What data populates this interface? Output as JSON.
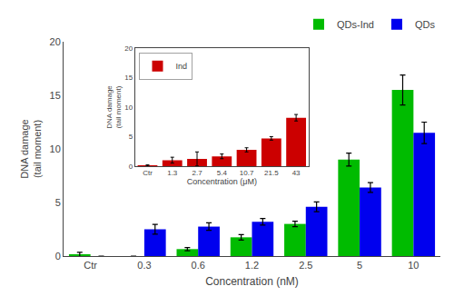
{
  "chart_data": [
    {
      "type": "bar",
      "categories": [
        "Ctr",
        "0.3",
        "0.6",
        "1.2",
        "2.5",
        "5",
        "10"
      ],
      "series": [
        {
          "name": "QDs-Ind",
          "color": "#00BB00",
          "values": [
            0.15,
            0.0,
            0.65,
            1.75,
            3.0,
            9.0,
            15.5
          ],
          "errors": [
            0.2,
            0.0,
            0.15,
            0.25,
            0.25,
            0.6,
            1.4
          ]
        },
        {
          "name": "QDs",
          "color": "#0000EE",
          "values": [
            0.0,
            2.5,
            2.75,
            3.2,
            4.6,
            6.4,
            11.5
          ],
          "errors": [
            0.0,
            0.45,
            0.35,
            0.3,
            0.45,
            0.45,
            1.0
          ]
        }
      ],
      "xlabel": "Concentration (nM)",
      "ylabel": "DNA damage\n(tail moment)",
      "ylim": [
        0,
        20
      ],
      "yticks": [
        0,
        5,
        10,
        15,
        20
      ],
      "legend": "upper right",
      "grid": false
    },
    {
      "type": "bar",
      "categories": [
        "Ctr",
        "1.3",
        "2.7",
        "5.4",
        "10.7",
        "21.5",
        "43"
      ],
      "series": [
        {
          "name": "Ind",
          "color": "#CC0000",
          "values": [
            0.1,
            1.0,
            1.2,
            1.65,
            2.75,
            4.7,
            8.2
          ],
          "errors": [
            0.1,
            0.5,
            1.2,
            0.4,
            0.35,
            0.3,
            0.55
          ]
        }
      ],
      "xlabel": "Concentration (μM)",
      "ylabel": "DNA damage\n(tail moment)",
      "ylim": [
        0,
        20
      ],
      "yticks": [
        0,
        5,
        10,
        15,
        20
      ],
      "legend": "upper left",
      "grid": false
    }
  ]
}
